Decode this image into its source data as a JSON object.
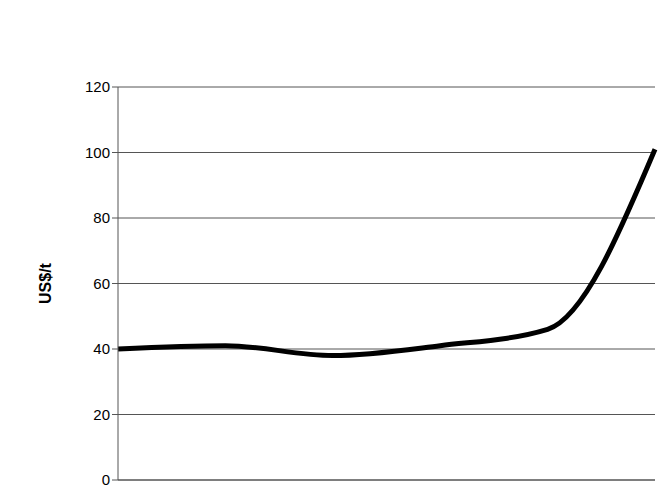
{
  "chart_data": {
    "type": "line",
    "y_label": "US$/t",
    "categories": [
      null,
      null,
      null,
      null,
      null,
      null
    ],
    "values": [
      40,
      41,
      38,
      41,
      46,
      101
    ],
    "color": "#000000",
    "ylim": [
      0,
      120
    ],
    "yticks": [
      0,
      20,
      40,
      60,
      80,
      100,
      120
    ],
    "grid": true,
    "tick_labels": "y"
  }
}
